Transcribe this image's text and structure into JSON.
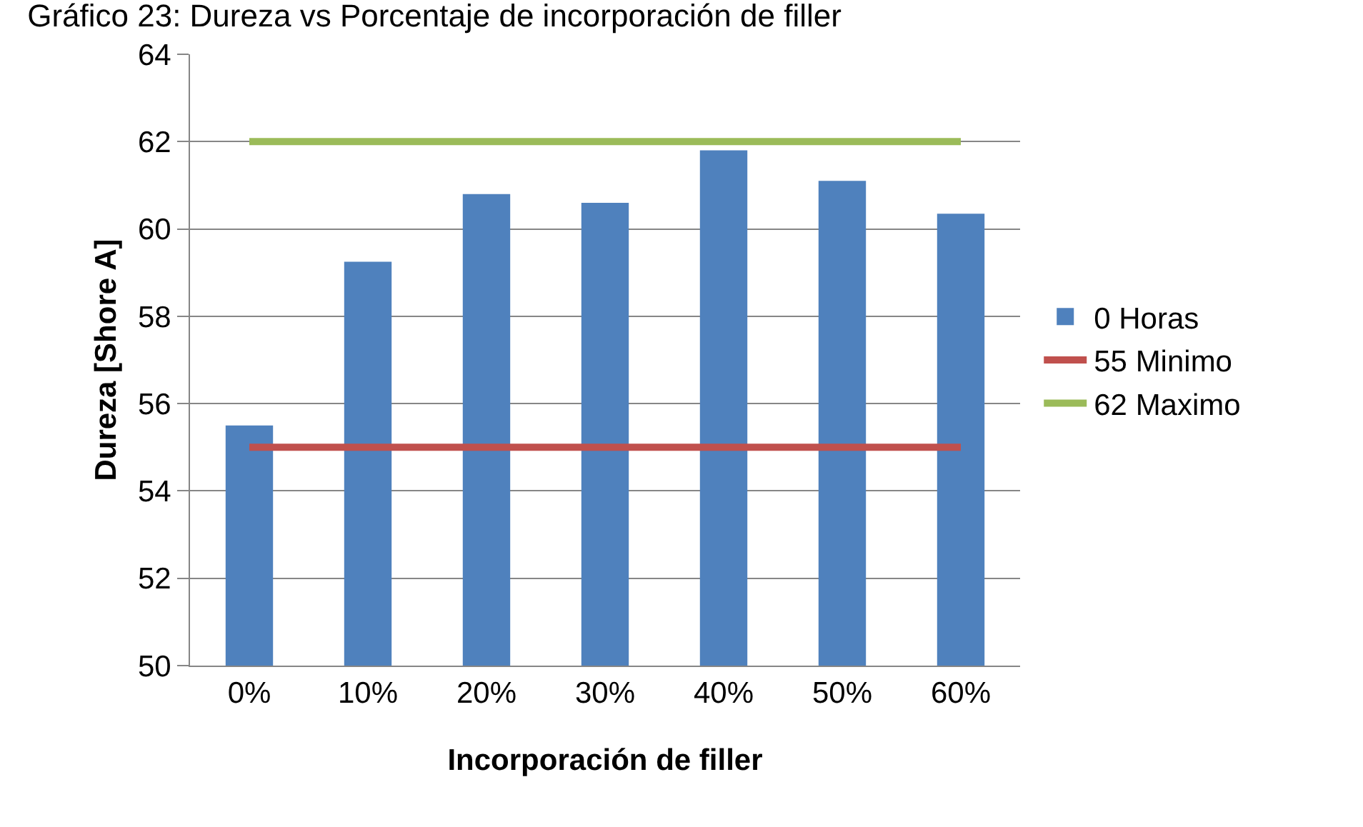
{
  "chart_data": {
    "type": "bar",
    "title": "Gráfico 23: Dureza vs Porcentaje de incorporación de filler",
    "xlabel": "Incorporación de filler",
    "ylabel": "Dureza [Shore A]",
    "categories": [
      "0%",
      "10%",
      "20%",
      "30%",
      "40%",
      "50%",
      "60%"
    ],
    "series": [
      {
        "name": "0 Horas",
        "color": "#4f81bd",
        "values": [
          55.5,
          59.25,
          60.8,
          60.6,
          61.8,
          61.1,
          60.35
        ]
      },
      {
        "name": "55 Minimo",
        "type": "line",
        "color": "#c0504d",
        "values": [
          55,
          55,
          55,
          55,
          55,
          55,
          55
        ]
      },
      {
        "name": "62 Maximo",
        "type": "line",
        "color": "#9bbb59",
        "values": [
          62,
          62,
          62,
          62,
          62,
          62,
          62
        ]
      }
    ],
    "ylim": [
      50,
      64
    ],
    "yticks": [
      50,
      52,
      54,
      56,
      58,
      60,
      62,
      64
    ],
    "grid": "y",
    "legend": "right",
    "marker": "none",
    "line_style": "solid"
  }
}
